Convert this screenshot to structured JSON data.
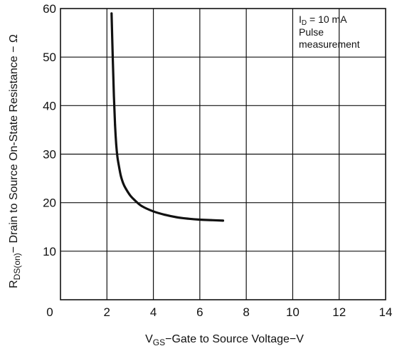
{
  "chart_data": {
    "type": "line",
    "xlabel": {
      "symbol": "V",
      "subscript": "GS",
      "text": "−Gate to Source Voltage−V"
    },
    "ylabel": {
      "symbol": "R",
      "subscript": "DS(on)",
      "text": "− Drain to Source On-State Resistance − Ω"
    },
    "xlim": [
      0,
      14
    ],
    "ylim": [
      0,
      60
    ],
    "x_ticks": [
      0,
      2,
      4,
      6,
      8,
      10,
      12,
      14
    ],
    "y_ticks": [
      10,
      20,
      30,
      40,
      50,
      60
    ],
    "grid": true,
    "annotation": {
      "line1_prefix": "I",
      "line1_sub": "D",
      "line1_suffix": " = 10 mA",
      "line2": "Pulse",
      "line3": "measurement",
      "placement": "top-right"
    },
    "series": [
      {
        "x": [
          2.2,
          2.25,
          2.3,
          2.35,
          2.4,
          2.45,
          2.5,
          2.6,
          2.7,
          2.8,
          3.0,
          3.2,
          3.5,
          4.0,
          4.5,
          5.0,
          5.5,
          6.0,
          6.5,
          7.0
        ],
        "y": [
          59,
          50,
          42,
          36,
          32,
          29.5,
          28,
          25.5,
          24,
          23,
          21.5,
          20.5,
          19.3,
          18.2,
          17.5,
          17.0,
          16.7,
          16.5,
          16.4,
          16.3
        ]
      }
    ]
  }
}
